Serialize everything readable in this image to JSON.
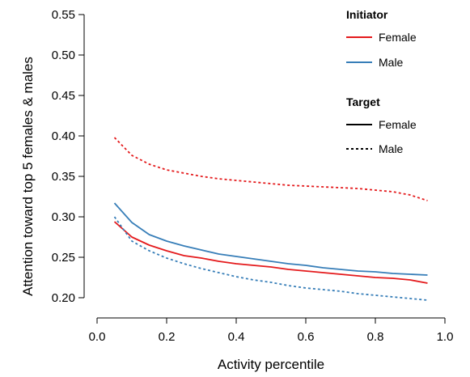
{
  "chart_data": {
    "type": "line",
    "xlabel": "Activity percentile",
    "ylabel": "Attention toward top 5 females & males",
    "xlim": [
      0.0,
      1.0
    ],
    "ylim": [
      0.19,
      0.56
    ],
    "xticks": [
      "0.0",
      "0.2",
      "0.4",
      "0.6",
      "0.8",
      "1.0"
    ],
    "yticks": [
      "0.20",
      "0.25",
      "0.30",
      "0.35",
      "0.40",
      "0.45",
      "0.50",
      "0.55"
    ],
    "grid": false,
    "legend_position": "top-right",
    "legend": {
      "initiator_title": "Initiator",
      "initiator_items": [
        {
          "label": "Female",
          "color": "#e41a1c"
        },
        {
          "label": "Male",
          "color": "#377eb8"
        }
      ],
      "target_title": "Target",
      "target_items": [
        {
          "label": "Female",
          "dash": "solid"
        },
        {
          "label": "Male",
          "dash": "dashed"
        }
      ]
    },
    "series": [
      {
        "initiator": "Female",
        "target": "Female",
        "color": "#e41a1c",
        "dash": "solid",
        "x": [
          0.05,
          0.1,
          0.15,
          0.2,
          0.25,
          0.3,
          0.35,
          0.4,
          0.45,
          0.5,
          0.55,
          0.6,
          0.65,
          0.7,
          0.75,
          0.8,
          0.85,
          0.9,
          0.95
        ],
        "y": [
          0.294,
          0.275,
          0.265,
          0.258,
          0.252,
          0.249,
          0.245,
          0.242,
          0.24,
          0.238,
          0.235,
          0.233,
          0.231,
          0.229,
          0.227,
          0.225,
          0.224,
          0.222,
          0.218
        ]
      },
      {
        "initiator": "Male",
        "target": "Female",
        "color": "#377eb8",
        "dash": "solid",
        "x": [
          0.05,
          0.1,
          0.15,
          0.2,
          0.25,
          0.3,
          0.35,
          0.4,
          0.45,
          0.5,
          0.55,
          0.6,
          0.65,
          0.7,
          0.75,
          0.8,
          0.85,
          0.9,
          0.95
        ],
        "y": [
          0.317,
          0.293,
          0.278,
          0.27,
          0.264,
          0.259,
          0.254,
          0.251,
          0.248,
          0.245,
          0.242,
          0.24,
          0.237,
          0.235,
          0.233,
          0.232,
          0.23,
          0.229,
          0.228
        ]
      },
      {
        "initiator": "Female",
        "target": "Male",
        "color": "#e41a1c",
        "dash": "dashed",
        "x": [
          0.05,
          0.1,
          0.15,
          0.2,
          0.25,
          0.3,
          0.35,
          0.4,
          0.45,
          0.5,
          0.55,
          0.6,
          0.65,
          0.7,
          0.75,
          0.8,
          0.85,
          0.9,
          0.95
        ],
        "y": [
          0.398,
          0.376,
          0.365,
          0.358,
          0.354,
          0.35,
          0.347,
          0.345,
          0.343,
          0.341,
          0.339,
          0.338,
          0.337,
          0.336,
          0.335,
          0.333,
          0.331,
          0.327,
          0.32
        ]
      },
      {
        "initiator": "Male",
        "target": "Male",
        "color": "#377eb8",
        "dash": "dashed",
        "x": [
          0.05,
          0.1,
          0.15,
          0.2,
          0.25,
          0.3,
          0.35,
          0.4,
          0.45,
          0.5,
          0.55,
          0.6,
          0.65,
          0.7,
          0.75,
          0.8,
          0.85,
          0.9,
          0.95
        ],
        "y": [
          0.3,
          0.27,
          0.258,
          0.249,
          0.242,
          0.236,
          0.231,
          0.226,
          0.222,
          0.219,
          0.215,
          0.212,
          0.21,
          0.208,
          0.205,
          0.203,
          0.201,
          0.199,
          0.197
        ]
      }
    ]
  }
}
